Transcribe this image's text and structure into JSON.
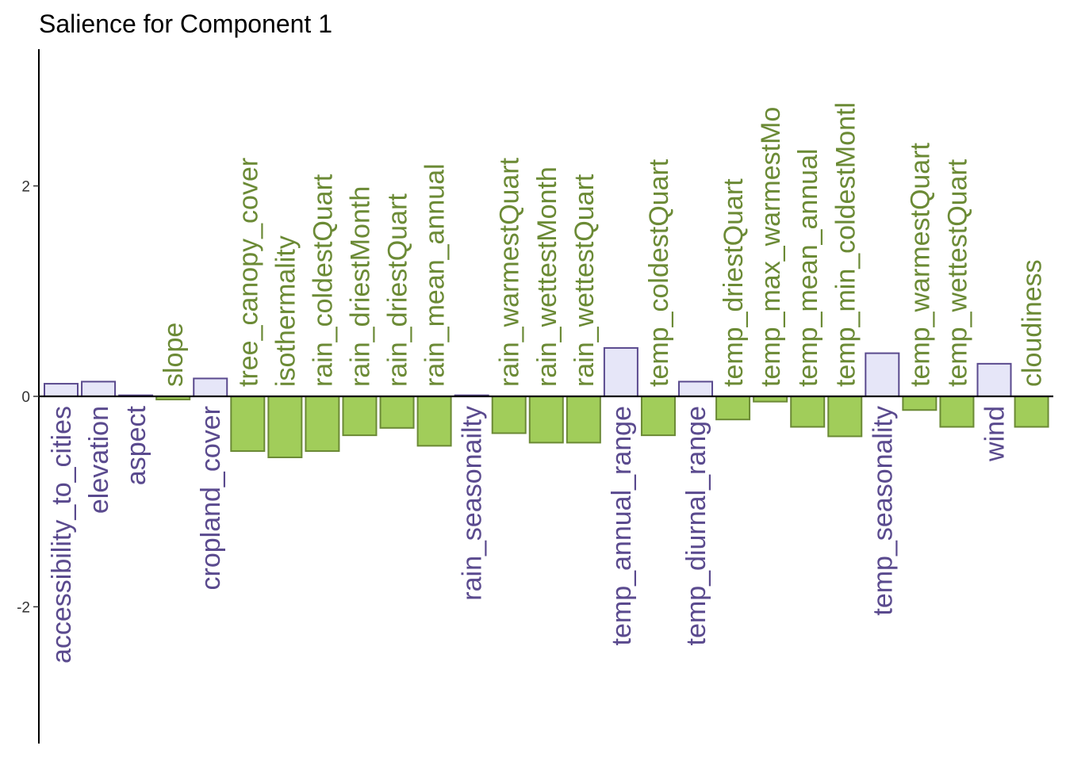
{
  "chart_data": {
    "type": "bar",
    "title": "Salience for Component 1",
    "xlabel": "",
    "ylabel": "",
    "ylim": [
      -3.3,
      3.3
    ],
    "yticks": [
      -2,
      0,
      2
    ],
    "ytick_labels": [
      "-2",
      "0",
      "2"
    ],
    "grid": false,
    "legend": "none",
    "colors": {
      "positive_fill": "#e6e6f8",
      "positive_stroke": "#5a4a8e",
      "positive_text": "#5a4a8e",
      "negative_fill": "#a1cd5a",
      "negative_stroke": "#6b8a35",
      "negative_text": "#6b8a35"
    },
    "categories": [
      "accessibility_to_cities",
      "elevation",
      "aspect",
      "slope",
      "cropland_cover",
      "tree_canopy_cover",
      "isothermality",
      "rain_coldestQuart",
      "rain_driestMonth",
      "rain_driestQuart",
      "rain_mean_annual",
      "rain_seasonailty",
      "rain_warmestQuart",
      "rain_wettestMonth",
      "rain_wettestQuart",
      "temp_annual_range",
      "temp_coldestQuart",
      "temp_diurnal_range",
      "temp_driestQuart",
      "temp_max_warmestMo",
      "temp_mean_annual",
      "temp_min_coldestMontl",
      "temp_seasonality",
      "temp_warmestQuart",
      "temp_wettestQuart",
      "wind",
      "cloudiness"
    ],
    "values": [
      0.12,
      0.14,
      0.01,
      -0.03,
      0.17,
      -0.52,
      -0.58,
      -0.52,
      -0.37,
      -0.3,
      -0.47,
      0.01,
      -0.35,
      -0.44,
      -0.44,
      0.46,
      -0.37,
      0.14,
      -0.22,
      -0.05,
      -0.29,
      -0.38,
      0.41,
      -0.13,
      -0.29,
      0.31,
      -0.29
    ]
  }
}
